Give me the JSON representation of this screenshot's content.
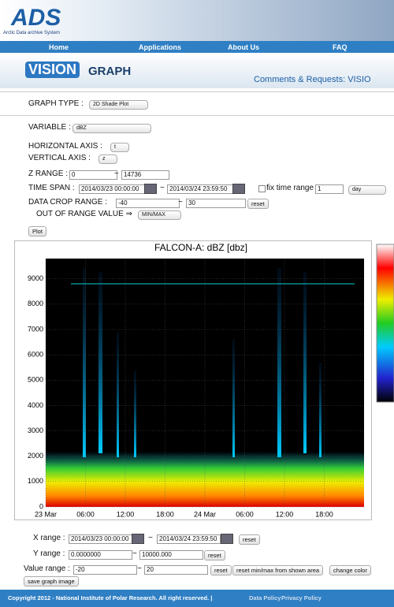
{
  "header": {
    "logo": "ADS",
    "logo_subtitle": "Arctic Data archive System"
  },
  "nav": [
    "Home",
    "Applications",
    "About Us",
    "FAQ"
  ],
  "banner": {
    "logo": "VISION",
    "title": "GRAPH",
    "comments": "Comments & Requests: VISIO"
  },
  "form": {
    "graph_type": {
      "label": "GRAPH TYPE :",
      "value": "2D Shade Plot"
    },
    "variable": {
      "label": "VARIABLE :",
      "value": "dBZ"
    },
    "horizontal_axis": {
      "label": "HORIZONTAL AXIS :",
      "value": "t"
    },
    "vertical_axis": {
      "label": "VERTICAL AXIS :",
      "value": "z"
    },
    "z_range": {
      "label": "Z RANGE :",
      "min": "0",
      "sep": "~",
      "max": "14736"
    },
    "time_span": {
      "label": "TIME SPAN :",
      "start": "2014/03/23 00:00:00",
      "sep": "~",
      "end": "2014/03/24 23:59:50",
      "fix_label": "fix time range",
      "fix_value": "1",
      "fix_unit": "day"
    },
    "data_crop_range": {
      "label": "DATA CROP RANGE :",
      "min": "-40",
      "sep": "~",
      "max": "30",
      "reset": "reset"
    },
    "out_of_range": {
      "label": "OUT OF RANGE VALUE ⇒",
      "value": "MIN/MAX"
    },
    "plot": "Plot"
  },
  "graph": {
    "title": "FALCON-A: dBZ [dbz]",
    "ylim": [
      0,
      9800
    ],
    "yticks": [
      0,
      1000,
      2000,
      3000,
      4000,
      5000,
      6000,
      7000,
      8000,
      9000
    ],
    "xticks": [
      "23 Mar",
      "06:00",
      "12:00",
      "18:00",
      "24 Mar",
      "06:00",
      "12:00",
      "18:00"
    ]
  },
  "controls": {
    "x_range": {
      "label": "X range :",
      "start": "2014/03/23 00:00:00",
      "sep": "~",
      "end": "2014/03/24 23:59:50",
      "reset": "reset"
    },
    "y_range": {
      "label": "Y range :",
      "min": "0.0000000",
      "sep": "~",
      "max": "10000.000",
      "reset": "reset"
    },
    "value_range": {
      "label": "Value range :",
      "min": "-20",
      "sep": "~",
      "max": "20",
      "reset": "reset",
      "reset_shown": "reset min/max from shown area",
      "change_color": "change color"
    },
    "save": "save graph image"
  },
  "footer": {
    "copyright": "Copyright 2012 - National Institute of Polar Research. All right reserved. |",
    "data_policy": "Data Policy",
    "privacy_policy": "Privacy Policy"
  }
}
